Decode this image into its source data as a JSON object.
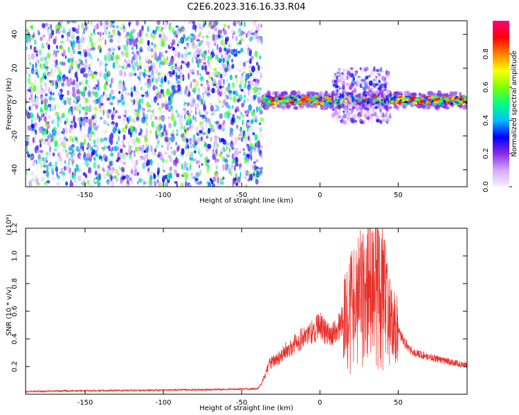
{
  "figure_title": "C2E6.2023.316.16.33.R04",
  "chart_data": [
    {
      "type": "heatmap",
      "title": "",
      "xlabel": "Height of straight line (km)",
      "ylabel": "Frequency (Hz)",
      "xlim": [
        -188,
        94
      ],
      "ylim": [
        -50,
        48
      ],
      "xticks": [
        -150,
        -100,
        -50,
        0,
        50
      ],
      "yticks": [
        -40,
        -20,
        0,
        20,
        40
      ],
      "colorbar": {
        "label": "Normalized spectral amplitude",
        "range": [
          0.0,
          1.0
        ],
        "ticks": [
          "0.0",
          "0.2",
          "0.4",
          "0.6",
          "0.8"
        ],
        "colors": [
          "#f8f0ff",
          "#d4a8ff",
          "#8a2be2",
          "#0000ff",
          "#00bfff",
          "#00ff80",
          "#80ff00",
          "#ffff00",
          "#ff8000",
          "#ff0000",
          "#ff0080"
        ]
      },
      "regions": [
        {
          "description_x_range": [
            -188,
            -37
          ],
          "kind": "broadband noise",
          "freq_range": [
            -50,
            48
          ],
          "amplitude_range": [
            0.0,
            0.15
          ]
        },
        {
          "description_x_range": [
            -37,
            94
          ],
          "kind": "narrow signal band",
          "center_freq": 1,
          "half_width": 3,
          "amplitude_range": [
            0.2,
            0.95
          ]
        },
        {
          "description_x_range": [
            8,
            45
          ],
          "kind": "spread scatter",
          "freq_range": [
            -12,
            20
          ],
          "amplitude_range": [
            0.0,
            0.3
          ]
        }
      ]
    },
    {
      "type": "line",
      "title": "",
      "xlabel": "Height of straight line (km)",
      "ylabel": "SNR (10 * v/v)",
      "y_multiplier": "(x10⁴)",
      "xlim": [
        -188,
        94
      ],
      "ylim": [
        0,
        1.2
      ],
      "xticks": [
        -150,
        -100,
        -50,
        0,
        50
      ],
      "yticks": [
        "0.2",
        "0.4",
        "0.6",
        "0.8",
        "1.0",
        "1.2"
      ],
      "series": [
        {
          "color": "#e8302a",
          "envelope_x": [
            -188,
            -150,
            -100,
            -60,
            -40,
            -37,
            -32,
            -25,
            -15,
            -5,
            0,
            5,
            10,
            15,
            20,
            25,
            30,
            35,
            40,
            45,
            50,
            55,
            60,
            70,
            80,
            94
          ],
          "envelope_y": [
            0.02,
            0.025,
            0.03,
            0.035,
            0.04,
            0.08,
            0.22,
            0.28,
            0.38,
            0.45,
            0.5,
            0.43,
            0.45,
            0.55,
            0.7,
            0.78,
            0.85,
            0.95,
            0.8,
            0.6,
            0.45,
            0.36,
            0.3,
            0.27,
            0.24,
            0.21
          ]
        }
      ]
    }
  ]
}
